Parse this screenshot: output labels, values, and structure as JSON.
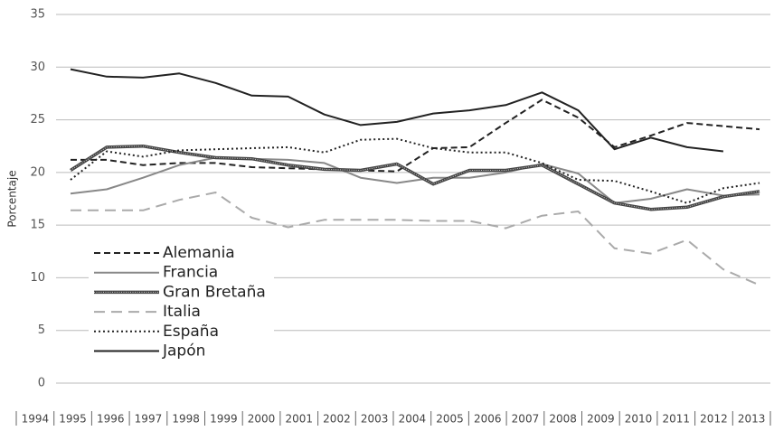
{
  "chart_data": {
    "type": "line",
    "y_label": "Porcentaje",
    "categories": [
      "1994",
      "1995",
      "1996",
      "1997",
      "1998",
      "1999",
      "2000",
      "2001",
      "2002",
      "2003",
      "2004",
      "2005",
      "2006",
      "2007",
      "2008",
      "2009",
      "2010",
      "2011",
      "2012",
      "2013"
    ],
    "series": [
      {
        "name": "Alemania",
        "color": "#222222",
        "style": "dashed",
        "values": [
          21.2,
          21.2,
          20.7,
          20.9,
          20.9,
          20.5,
          20.4,
          20.3,
          20.2,
          20.1,
          22.3,
          22.4,
          24.7,
          26.9,
          25.2,
          22.4,
          23.5,
          24.7,
          24.4,
          24.1
        ]
      },
      {
        "name": "Francia",
        "color": "#888888",
        "style": "solid",
        "values": [
          18.0,
          18.4,
          19.5,
          20.7,
          21.4,
          21.3,
          21.2,
          20.9,
          19.5,
          19.0,
          19.5,
          19.5,
          20.0,
          20.8,
          19.9,
          17.1,
          17.5,
          18.4,
          17.8,
          17.9
        ]
      },
      {
        "name": "Gran Bretaña",
        "color": "#444444",
        "style": "striped",
        "values": [
          20.2,
          22.4,
          22.5,
          21.9,
          21.4,
          21.3,
          20.7,
          20.3,
          20.2,
          20.8,
          18.9,
          20.2,
          20.2,
          20.7,
          18.9,
          17.1,
          16.5,
          16.7,
          17.7,
          18.2
        ]
      },
      {
        "name": "Italia",
        "color": "#aaaaaa",
        "style": "longdash",
        "values": [
          16.4,
          16.4,
          16.4,
          17.4,
          18.1,
          15.7,
          14.8,
          15.5,
          15.5,
          15.5,
          15.4,
          15.4,
          14.7,
          15.9,
          16.3,
          12.8,
          12.3,
          13.6,
          10.8,
          9.3
        ]
      },
      {
        "name": "España",
        "color": "#222222",
        "style": "dotted",
        "values": [
          19.3,
          22.0,
          21.5,
          22.1,
          22.2,
          22.3,
          22.4,
          21.9,
          23.1,
          23.2,
          22.3,
          21.9,
          21.9,
          20.9,
          19.3,
          19.2,
          18.2,
          17.1,
          18.5,
          19.0
        ]
      },
      {
        "name": "Japón",
        "color": "#222222",
        "style": "solid",
        "values": [
          29.8,
          29.1,
          29.0,
          29.4,
          28.5,
          27.3,
          27.2,
          25.5,
          24.5,
          24.8,
          25.6,
          25.9,
          26.4,
          27.6,
          25.9,
          22.2,
          23.3,
          22.4,
          22.0,
          null
        ]
      }
    ],
    "ylim": [
      0,
      35
    ],
    "yticks": [
      0,
      5,
      10,
      15,
      20,
      25,
      30,
      35
    ],
    "grid": true,
    "legend": "lower left"
  }
}
